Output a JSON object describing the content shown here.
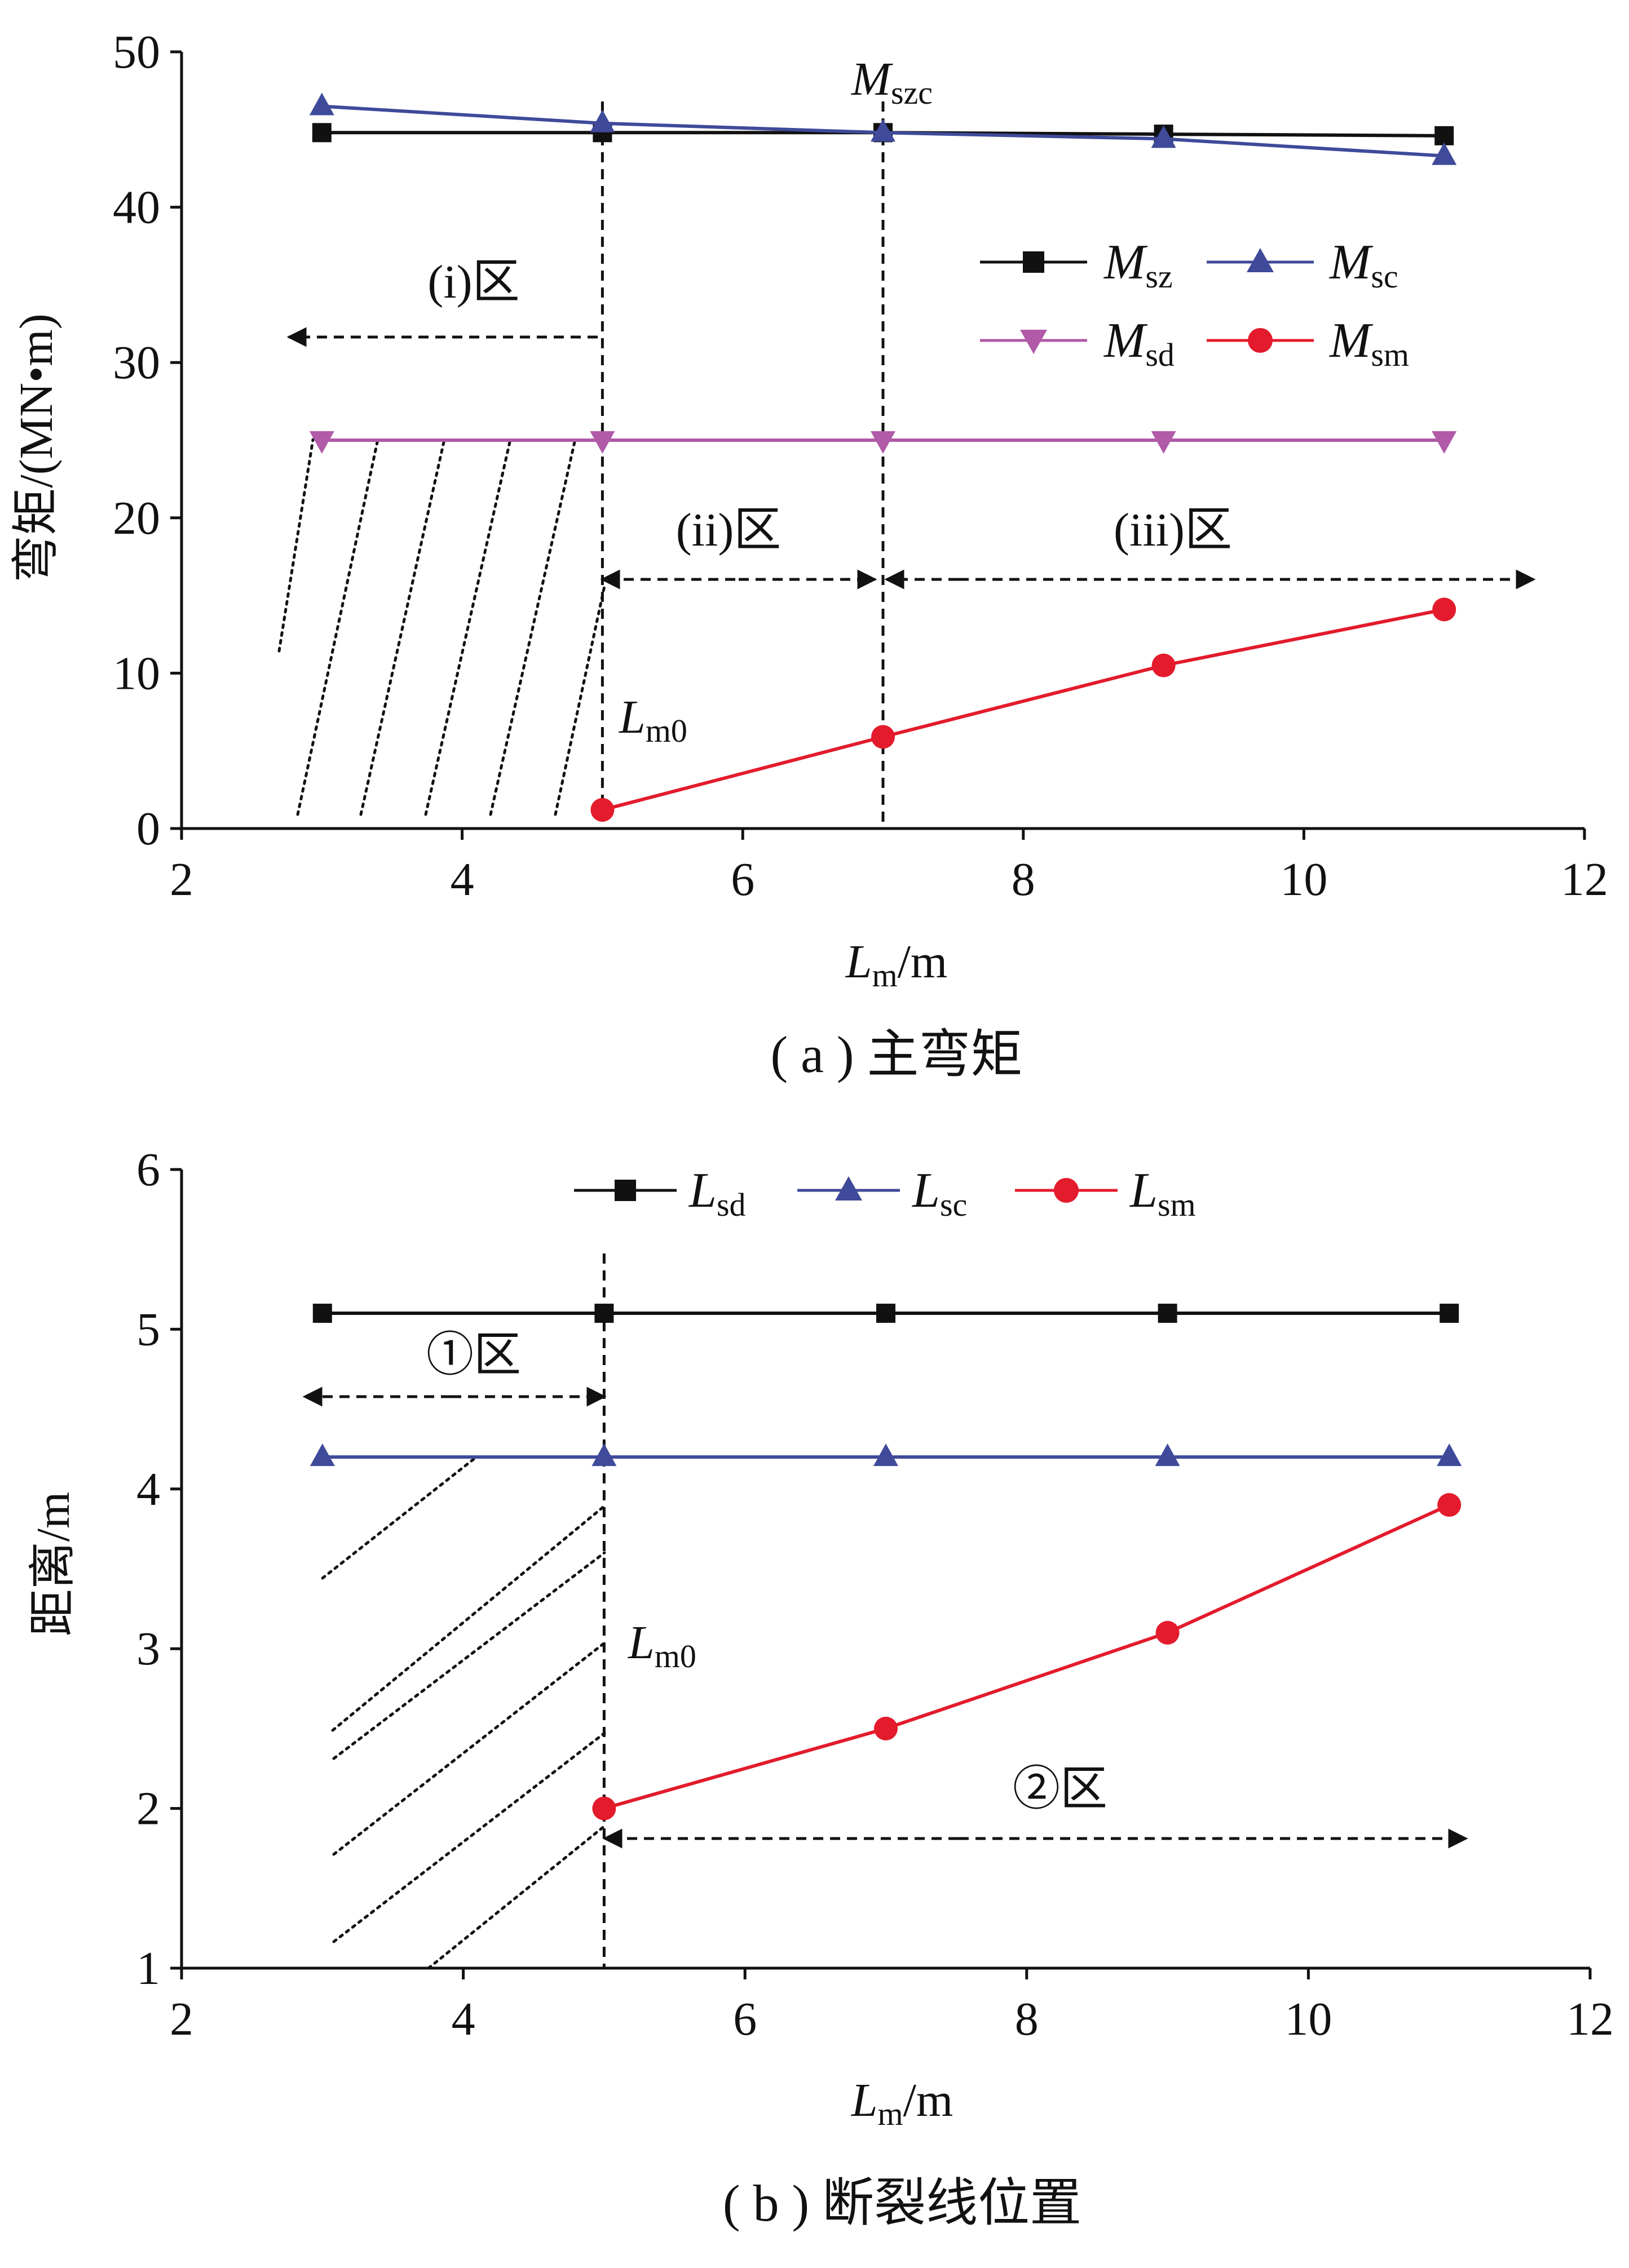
{
  "colors": {
    "black": "#111111",
    "blue": "#3f4a9a",
    "purple": "#b05aa8",
    "red": "#e31b2c"
  },
  "chart_data": [
    {
      "type": "line",
      "caption": "( a ) 主弯矩",
      "ylabel": "弯矩/(MN•m)",
      "xlabel": {
        "main": "L",
        "sub": "m",
        "tail": "/m"
      },
      "xlim": [
        2,
        12
      ],
      "ylim": [
        0,
        50
      ],
      "xticks": [
        2,
        4,
        6,
        8,
        10,
        12
      ],
      "yticks": [
        0,
        10,
        20,
        30,
        40,
        50
      ],
      "grid": false,
      "legend_position": "right",
      "series": [
        {
          "key": "Msz",
          "name": "M",
          "sub": "sz",
          "color": "#111111",
          "marker": "square",
          "x": [
            3,
            5,
            7,
            9,
            11
          ],
          "y": [
            44.8,
            44.8,
            44.8,
            44.7,
            44.6
          ]
        },
        {
          "key": "Msc",
          "name": "M",
          "sub": "sc",
          "color": "#3f4a9a",
          "marker": "triangle-up",
          "x": [
            3,
            5,
            7,
            9,
            11
          ],
          "y": [
            46.5,
            45.4,
            44.8,
            44.4,
            43.3
          ]
        },
        {
          "key": "Msd",
          "name": "M",
          "sub": "sd",
          "color": "#b05aa8",
          "marker": "triangle-down",
          "x": [
            3,
            5,
            7,
            9,
            11
          ],
          "y": [
            25,
            25,
            25,
            25,
            25
          ]
        },
        {
          "key": "Msm",
          "name": "M",
          "sub": "sm",
          "color": "#e31b2c",
          "marker": "circle",
          "x": [
            5,
            7,
            9,
            11
          ],
          "y": [
            1.2,
            5.9,
            10.5,
            14.1
          ]
        }
      ],
      "annotations": {
        "mszc": {
          "main": "M",
          "sub": "szc"
        },
        "lm0": {
          "main": "L",
          "sub": "m0"
        },
        "zone_i": "(i)区",
        "zone_ii": "(ii)区",
        "zone_iii": "(iii)区"
      }
    },
    {
      "type": "line",
      "caption": "( b ) 断裂线位置",
      "ylabel": "距离/m",
      "xlabel": {
        "main": "L",
        "sub": "m",
        "tail": "/m"
      },
      "xlim": [
        2,
        12
      ],
      "ylim": [
        1,
        6
      ],
      "xticks": [
        2,
        4,
        6,
        8,
        10,
        12
      ],
      "yticks": [
        1,
        2,
        3,
        4,
        5,
        6
      ],
      "grid": false,
      "legend_position": "top",
      "series": [
        {
          "key": "Lsd",
          "name": "L",
          "sub": "sd",
          "color": "#111111",
          "marker": "square",
          "x": [
            3,
            5,
            7,
            9,
            11
          ],
          "y": [
            5.1,
            5.1,
            5.1,
            5.1,
            5.1
          ]
        },
        {
          "key": "Lsc",
          "name": "L",
          "sub": "sc",
          "color": "#3f4a9a",
          "marker": "triangle-up",
          "x": [
            3,
            5,
            7,
            9,
            11
          ],
          "y": [
            4.2,
            4.2,
            4.2,
            4.2,
            4.2
          ]
        },
        {
          "key": "Lsm",
          "name": "L",
          "sub": "sm",
          "color": "#e31b2c",
          "marker": "circle",
          "x": [
            5,
            7,
            9,
            11
          ],
          "y": [
            2.0,
            2.5,
            3.1,
            3.9
          ]
        }
      ],
      "annotations": {
        "lm0": {
          "main": "L",
          "sub": "m0"
        },
        "zone_1": "①区",
        "zone_2": "②区"
      }
    }
  ]
}
